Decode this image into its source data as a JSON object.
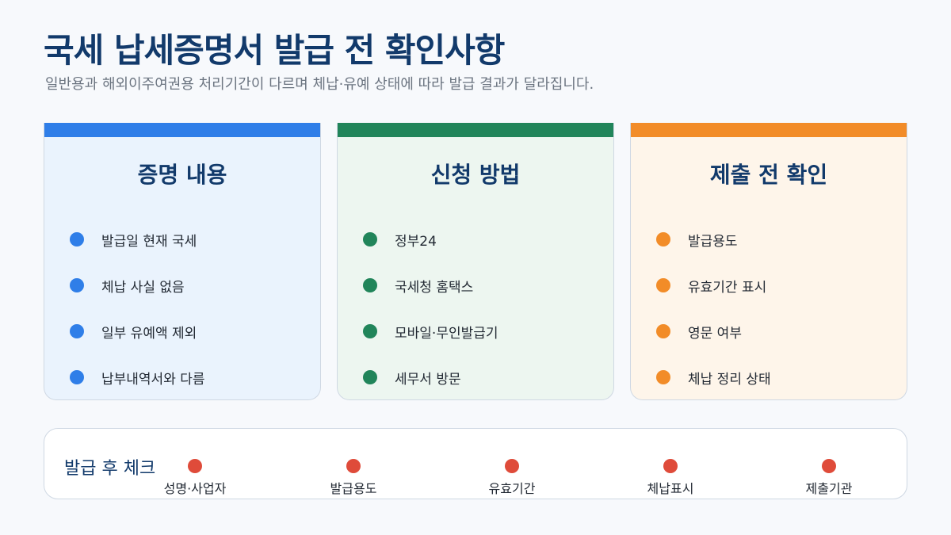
{
  "header": {
    "title": "국세 납세증명서 발급 전 확인사항",
    "subtitle": "일반용과 해외이주여권용 처리기간이 다르며 체납·유예 상태에 따라 발급 결과가 달라집니다."
  },
  "cards": [
    {
      "title": "증명 내용",
      "accent": "#2f7ee8",
      "items": [
        "발급일 현재 국세",
        "체납 사실 없음",
        "일부 유예액 제외",
        "납부내역서와 다름"
      ]
    },
    {
      "title": "신청 방법",
      "accent": "#21855a",
      "items": [
        "정부24",
        "국세청 홈택스",
        "모바일·무인발급기",
        "세무서 방문"
      ]
    },
    {
      "title": "제출 전 확인",
      "accent": "#f28c28",
      "items": [
        "발급용도",
        "유효기간 표시",
        "영문 여부",
        "체납 정리 상태"
      ]
    }
  ],
  "after_check": {
    "title": "발급 후 체크",
    "accent": "#df4b3a",
    "steps": [
      "성명·사업자",
      "발급용도",
      "유효기간",
      "체납표시",
      "제출기관"
    ]
  }
}
